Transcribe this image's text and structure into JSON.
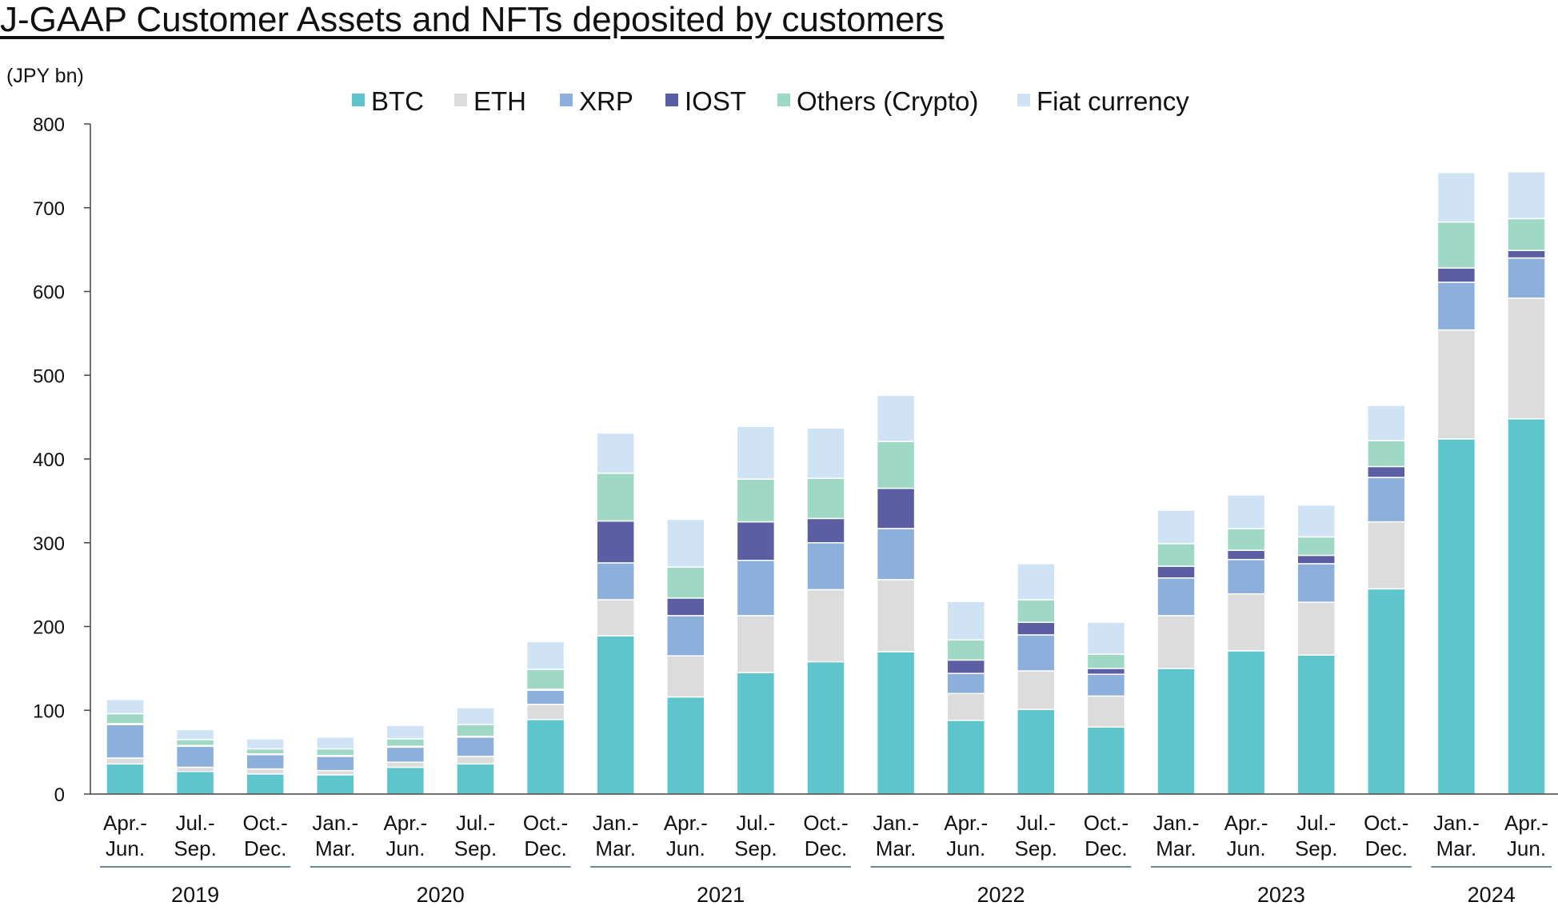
{
  "chart_data": {
    "type": "bar",
    "stacked": true,
    "title": "J-GAAP Customer Assets and NFTs deposited by customers",
    "unit_label": "(JPY bn)",
    "ylim": [
      0,
      800
    ],
    "yticks": [
      0,
      100,
      200,
      300,
      400,
      500,
      600,
      700,
      800
    ],
    "grid": false,
    "legend_position": "top",
    "categories": [
      [
        "Apr.-",
        "Jun."
      ],
      [
        "Jul.-",
        "Sep."
      ],
      [
        "Oct.-",
        "Dec."
      ],
      [
        "Jan.-",
        "Mar."
      ],
      [
        "Apr.-",
        "Jun."
      ],
      [
        "Jul.-",
        "Sep."
      ],
      [
        "Oct.-",
        "Dec."
      ],
      [
        "Jan.-",
        "Mar."
      ],
      [
        "Apr.-",
        "Jun."
      ],
      [
        "Jul.-",
        "Sep."
      ],
      [
        "Oct.-",
        "Dec."
      ],
      [
        "Jan.-",
        "Mar."
      ],
      [
        "Apr.-",
        "Jun."
      ],
      [
        "Jul.-",
        "Sep."
      ],
      [
        "Oct.-",
        "Dec."
      ],
      [
        "Jan.-",
        "Mar."
      ],
      [
        "Apr.-",
        "Jun."
      ],
      [
        "Jul.-",
        "Sep."
      ],
      [
        "Oct.-",
        "Dec."
      ],
      [
        "Jan.-",
        "Mar."
      ],
      [
        "Apr.-",
        "Jun."
      ]
    ],
    "year_groups": [
      {
        "label": "2019",
        "start": 0,
        "end": 2
      },
      {
        "label": "2020",
        "start": 3,
        "end": 6
      },
      {
        "label": "2021",
        "start": 7,
        "end": 10
      },
      {
        "label": "2022",
        "start": 11,
        "end": 14
      },
      {
        "label": "2023",
        "start": 15,
        "end": 18
      },
      {
        "label": "2024",
        "start": 19,
        "end": 20
      }
    ],
    "series": [
      {
        "name": "BTC",
        "color": "#5fc5cc",
        "values": [
          36,
          27,
          24,
          23,
          32,
          36,
          89,
          189,
          116,
          145,
          158,
          170,
          88,
          101,
          80,
          150,
          171,
          166,
          245,
          424,
          448
        ]
      },
      {
        "name": "ETH",
        "color": "#dcdcdc",
        "values": [
          7,
          5,
          6,
          5,
          6,
          9,
          18,
          43,
          49,
          68,
          86,
          86,
          32,
          46,
          37,
          63,
          68,
          63,
          80,
          130,
          144
        ]
      },
      {
        "name": "XRP",
        "color": "#8cafdb",
        "values": [
          40,
          25,
          17,
          17,
          18,
          23,
          17,
          44,
          48,
          66,
          56,
          61,
          24,
          43,
          26,
          45,
          41,
          46,
          53,
          57,
          48
        ]
      },
      {
        "name": "IOST",
        "color": "#5c5ea4",
        "values": [
          1,
          1,
          1,
          1,
          1,
          1,
          1,
          50,
          21,
          46,
          29,
          48,
          16,
          15,
          7,
          14,
          11,
          10,
          13,
          17,
          9
        ]
      },
      {
        "name": "Others (Crypto)",
        "color": "#9fd9c6",
        "values": [
          12,
          7,
          6,
          8,
          9,
          14,
          24,
          57,
          37,
          51,
          48,
          56,
          24,
          27,
          17,
          27,
          26,
          22,
          31,
          55,
          38
        ]
      },
      {
        "name": "Fiat currency",
        "color": "#cfe3f4",
        "values": [
          17,
          12,
          12,
          14,
          16,
          20,
          33,
          48,
          57,
          63,
          60,
          55,
          46,
          43,
          38,
          40,
          40,
          38,
          42,
          59,
          56
        ]
      }
    ]
  }
}
